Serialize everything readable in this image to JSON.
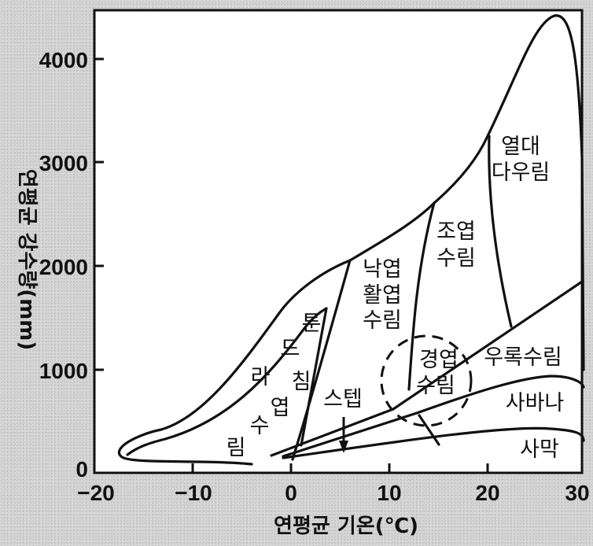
{
  "x_axis": {
    "title": "연평균 기온(℃)",
    "ticks": [
      "−20",
      "−10",
      "0",
      "10",
      "20",
      "30"
    ]
  },
  "y_axis": {
    "title": "연평균 강수량(mm)",
    "ticks": [
      "0",
      "1000",
      "2000",
      "3000",
      "4000"
    ]
  },
  "regions": {
    "tundra": [
      "툰",
      "드",
      "라"
    ],
    "taiga": [
      "침",
      "엽",
      "수",
      "림"
    ],
    "deciduous": [
      "낙엽",
      "활엽",
      "수림"
    ],
    "subtropical_evergreen": [
      "조엽",
      "수림"
    ],
    "tropical_rainforest": [
      "열대",
      "다우림"
    ],
    "steppe": "스텝",
    "sclerophyll": [
      "경엽",
      "수림"
    ],
    "monsoon_forest": "우록수림",
    "savanna": "사바나",
    "desert": "사막"
  }
}
